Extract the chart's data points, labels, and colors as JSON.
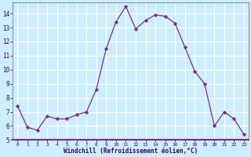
{
  "x": [
    0,
    1,
    2,
    3,
    4,
    5,
    6,
    7,
    8,
    9,
    10,
    11,
    12,
    13,
    14,
    15,
    16,
    17,
    18,
    19,
    20,
    21,
    22,
    23
  ],
  "y": [
    7.4,
    5.9,
    5.7,
    6.7,
    6.5,
    6.5,
    6.8,
    7.0,
    8.6,
    11.5,
    13.4,
    14.5,
    12.9,
    13.5,
    13.9,
    13.8,
    13.3,
    11.6,
    9.9,
    9.0,
    6.0,
    7.0,
    6.5,
    5.4
  ],
  "line_color": "#7B2D8B",
  "marker": "D",
  "marker_size": 2.2,
  "bg_color": "#cceeff",
  "grid_color": "#ffffff",
  "xlabel": "Windchill (Refroidissement éolien,°C)",
  "xlim_min": -0.5,
  "xlim_max": 23.5,
  "ylim_min": 5.0,
  "ylim_max": 14.5,
  "yticks": [
    5,
    6,
    7,
    8,
    9,
    10,
    11,
    12,
    13,
    14
  ],
  "xticks": [
    0,
    1,
    2,
    3,
    4,
    5,
    6,
    7,
    8,
    9,
    10,
    11,
    12,
    13,
    14,
    15,
    16,
    17,
    18,
    19,
    20,
    21,
    22,
    23
  ]
}
